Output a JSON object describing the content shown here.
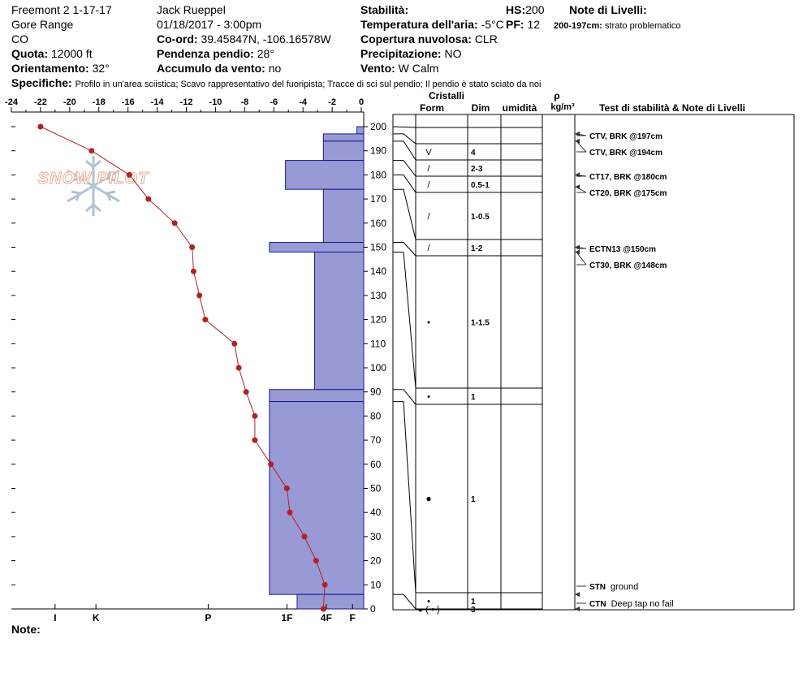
{
  "header": {
    "site": "Freemont 2 1-17-17",
    "range": "Gore Range",
    "state": "CO",
    "quota_label": "Quota:",
    "quota_value": "12000 ft",
    "orient_label": "Orientamento:",
    "orient_value": "32°",
    "observer": "Jack Rueppel",
    "datetime": "01/18/2017 - 3:00pm",
    "coord_label": "Co-ord:",
    "coord_value": "39.45847N, -106.16578W",
    "slope_label": "Pendenza pendio:",
    "slope_value": "28°",
    "wind_load_label": "Accumulo da vento:",
    "wind_load_value": "no",
    "stability_label": "Stabilità:",
    "air_temp_label": "Temperatura dell'aria:",
    "air_temp_value": "-5°C",
    "cloud_label": "Copertura nuvolosa:",
    "cloud_value": "CLR",
    "precip_label": "Precipitazione:",
    "precip_value": "NO",
    "wind_label": "Vento:",
    "wind_value": "W Calm",
    "hs_label": "HS:",
    "hs_value": "200",
    "pf_label": "PF:",
    "pf_value": "12",
    "layer_notes_label": "Note di Livelli:",
    "layer_note_range": "200-197cm:",
    "layer_note_text": "strato problematico",
    "specifics_label": "Specifiche:",
    "specifics_value": "Profilo in un'area sciistica; Scavo rappresentativo del fuoripista; Tracce di sci sul pendio; Il pendio è stato sciato da noi"
  },
  "logo_text": "SNOW PILOT",
  "note_label": "Note:",
  "table_headers": {
    "crystals": "Cristalli",
    "form": "Form",
    "size": "Dim",
    "moisture": "umidità",
    "rho": "ρ",
    "density_unit": "kg/m³",
    "tests": "Test di stabilità & Note di Livelli"
  },
  "colors": {
    "hardness_fill": "#9999d6",
    "hardness_stroke": "#1a1a8c",
    "temp_line": "#b22222"
  },
  "chart_data": {
    "type": "line",
    "temperature_axis": {
      "ticks": [
        "-24",
        "-22",
        "-20",
        "-18",
        "-16",
        "-14",
        "-12",
        "-10",
        "-8",
        "-6",
        "-4",
        "-2",
        "0"
      ],
      "range": [
        -24,
        0
      ]
    },
    "height_axis": {
      "ticks": [
        "200",
        "190",
        "180",
        "170",
        "160",
        "150",
        "140",
        "130",
        "120",
        "110",
        "100",
        "90",
        "80",
        "70",
        "60",
        "50",
        "40",
        "30",
        "20",
        "10",
        "0"
      ],
      "range": [
        0,
        200
      ]
    },
    "hardness_axis": {
      "labels": [
        "I",
        "K",
        "P",
        "1F",
        "4F",
        "F"
      ],
      "values": [
        -21,
        -18.2,
        -10.5,
        -5.1,
        -2.4,
        -0.6
      ]
    },
    "temperature_profile": [
      {
        "height": 200,
        "temp": -22
      },
      {
        "height": 190,
        "temp": -18.5
      },
      {
        "height": 180,
        "temp": -15.9
      },
      {
        "height": 170,
        "temp": -14.6
      },
      {
        "height": 160,
        "temp": -12.8
      },
      {
        "height": 150,
        "temp": -11.6
      },
      {
        "height": 140,
        "temp": -11.5
      },
      {
        "height": 130,
        "temp": -11.1
      },
      {
        "height": 120,
        "temp": -10.7
      },
      {
        "height": 110,
        "temp": -8.7
      },
      {
        "height": 100,
        "temp": -8.4
      },
      {
        "height": 90,
        "temp": -7.9
      },
      {
        "height": 80,
        "temp": -7.3
      },
      {
        "height": 70,
        "temp": -7.3
      },
      {
        "height": 60,
        "temp": -6.2
      },
      {
        "height": 50,
        "temp": -5.1
      },
      {
        "height": 40,
        "temp": -4.9
      },
      {
        "height": 30,
        "temp": -3.9
      },
      {
        "height": 20,
        "temp": -3.1
      },
      {
        "height": 10,
        "temp": -2.5
      },
      {
        "height": 0,
        "temp": -2.6
      }
    ],
    "hardness_profile": [
      {
        "top": 200,
        "bottom": 197,
        "hardness": -0.3
      },
      {
        "top": 197,
        "bottom": 194,
        "hardness": -2.6
      },
      {
        "top": 194,
        "bottom": 186,
        "hardness": -2.6
      },
      {
        "top": 186,
        "bottom": 174,
        "hardness": -5.2
      },
      {
        "top": 174,
        "bottom": 152,
        "hardness": -2.6
      },
      {
        "top": 152,
        "bottom": 148,
        "hardness": -6.3
      },
      {
        "top": 148,
        "bottom": 91,
        "hardness": -3.2
      },
      {
        "top": 91,
        "bottom": 86,
        "hardness": -6.3
      },
      {
        "top": 86,
        "bottom": 6,
        "hardness": -6.3
      },
      {
        "top": 6,
        "bottom": 0,
        "hardness": -4.4
      }
    ],
    "layers": [
      {
        "top": 200,
        "bottom": 197,
        "form": "",
        "size": ""
      },
      {
        "top": 197,
        "bottom": 194,
        "form": "V",
        "size": "4"
      },
      {
        "top": 194,
        "bottom": 186,
        "form": "/",
        "size": "2-3"
      },
      {
        "top": 186,
        "bottom": 180,
        "form": "/",
        "size": "0.5-1"
      },
      {
        "top": 180,
        "bottom": 174,
        "form": "/",
        "size": "1-0.5"
      },
      {
        "top": 174,
        "bottom": 152,
        "form": "/",
        "size": "1-2"
      },
      {
        "top": 152,
        "bottom": 148,
        "form": "•",
        "size": "1-1.5"
      },
      {
        "top": 148,
        "bottom": 91,
        "form": "•",
        "size": "1"
      },
      {
        "top": 91,
        "bottom": 86,
        "form": "●",
        "size": "1"
      },
      {
        "top": 86,
        "bottom": 6,
        "form": "•",
        "size": "1"
      },
      {
        "top": 6,
        "bottom": 0,
        "form": "◒ ( • )",
        "size": "3"
      }
    ],
    "tests": [
      {
        "height": 197,
        "code": "CTV, BRK @197cm",
        "text": ""
      },
      {
        "height": 194,
        "code": "CTV, BRK @194cm",
        "text": ""
      },
      {
        "height": 180,
        "code": "CT17, BRK @180cm",
        "text": ""
      },
      {
        "height": 175,
        "code": "CT20, BRK @175cm",
        "text": ""
      },
      {
        "height": 150,
        "code": "ECTN13 @150cm",
        "text": ""
      },
      {
        "height": 148,
        "code": "CT30, BRK @148cm",
        "text": ""
      },
      {
        "height": 6,
        "code": "STN",
        "text": "ground"
      },
      {
        "height": 0,
        "code": "CTN",
        "text": "Deep tap no fail"
      }
    ]
  }
}
